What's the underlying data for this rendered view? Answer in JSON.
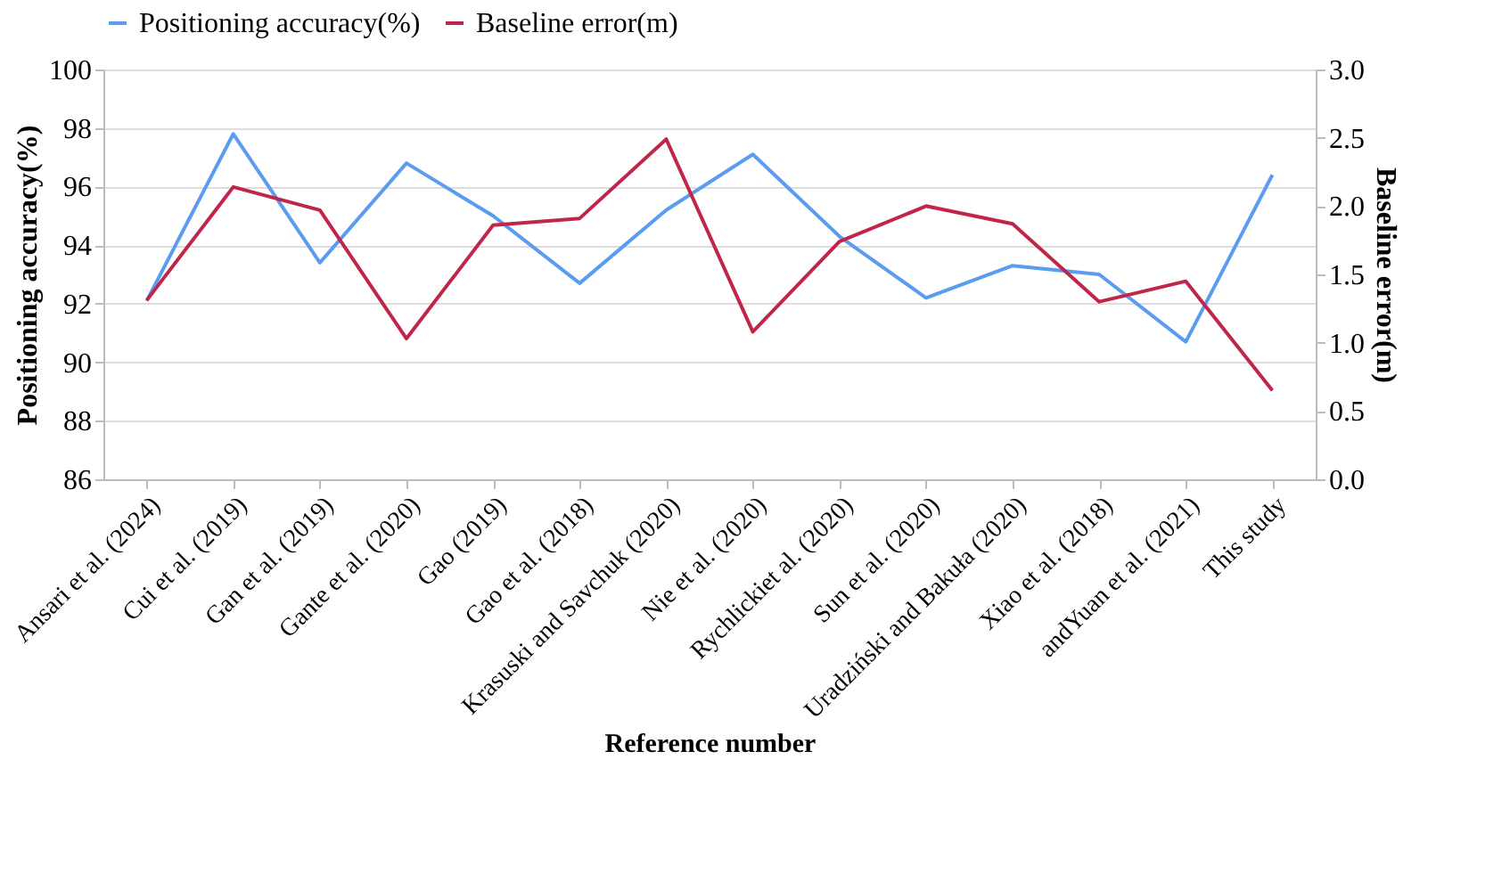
{
  "chart_data": {
    "type": "line",
    "xlabel": "Reference number",
    "ylabel": "Positioning accuracy(%)",
    "y2label": "Baseline error(m)",
    "categories": [
      "Ansari et al. (2024)",
      "Cui et al. (2019)",
      "Gan et al. (2019)",
      "Gante et al. (2020)",
      "Gao (2019)",
      "Gao et al. (2018)",
      "Krasuski and Savchuk (2020)",
      "Nie et al. (2020)",
      "Rychlickiet al. (2020)",
      "Sun et al. (2020)",
      "Uradziński and Bakuła (2020)",
      "Xiao et al. (2018)",
      "andYuan et al. (2021)",
      "This study"
    ],
    "series": [
      {
        "name": "Positioning accuracy(%)",
        "color": "#5b9bf0",
        "values": [
          92.1,
          97.8,
          93.4,
          96.8,
          95.0,
          92.7,
          95.2,
          97.1,
          94.3,
          92.2,
          93.3,
          93.0,
          90.7,
          96.4
        ]
      },
      {
        "name": "Baseline error(m)",
        "color": "#c0264a",
        "axis": "y2",
        "values": [
          1.31,
          2.14,
          1.97,
          1.03,
          1.86,
          1.91,
          2.49,
          1.08,
          1.74,
          2.0,
          1.87,
          1.3,
          1.45,
          0.65
        ]
      }
    ],
    "ylim": [
      86,
      100
    ],
    "yticks": [
      86,
      88,
      90,
      92,
      94,
      96,
      98,
      100
    ],
    "y2lim": [
      0.0,
      3.0
    ],
    "y2ticks": [
      {
        "value": 0,
        "label": "0.0"
      },
      {
        "value": 0.5,
        "label": "0.5"
      },
      {
        "value": 1,
        "label": "1.0"
      },
      {
        "value": 1.5,
        "label": "1.5"
      },
      {
        "value": 2,
        "label": "2.0"
      },
      {
        "value": 2.5,
        "label": "2.5"
      },
      {
        "value": 3,
        "label": "3.0"
      }
    ],
    "grid": "y",
    "legend": "top",
    "marker": "none",
    "line_style": "solid"
  }
}
